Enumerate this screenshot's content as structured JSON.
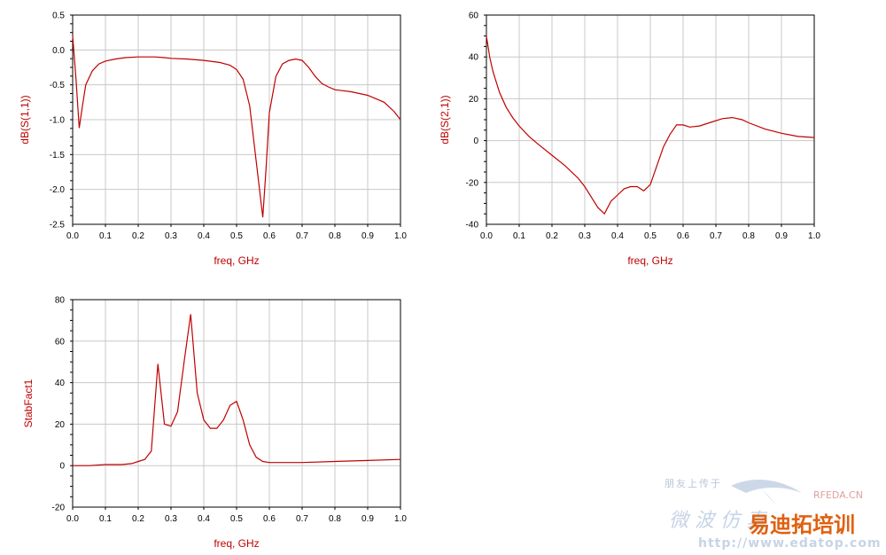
{
  "chart_data": [
    {
      "type": "line",
      "id": "s11",
      "xlabel": "freq, GHz",
      "ylabel": "dB(S(1,1))",
      "xlim": [
        0,
        1.0
      ],
      "ylim": [
        -2.5,
        0.5
      ],
      "xticks": [
        "0.0",
        "0.1",
        "0.2",
        "0.3",
        "0.4",
        "0.5",
        "0.6",
        "0.7",
        "0.8",
        "0.9",
        "1.0"
      ],
      "yticks": [
        "0.5",
        "0.0",
        "-0.5",
        "-1.0",
        "-1.5",
        "-2.0",
        "-2.5"
      ],
      "grid": true,
      "series": [
        {
          "color": "#c00000",
          "x": [
            0.0,
            0.01,
            0.02,
            0.03,
            0.04,
            0.06,
            0.08,
            0.1,
            0.13,
            0.16,
            0.2,
            0.25,
            0.28,
            0.3,
            0.35,
            0.4,
            0.45,
            0.48,
            0.5,
            0.52,
            0.54,
            0.56,
            0.58,
            0.59,
            0.6,
            0.62,
            0.64,
            0.66,
            0.68,
            0.7,
            0.72,
            0.74,
            0.76,
            0.78,
            0.8,
            0.85,
            0.9,
            0.95,
            0.98,
            1.0
          ],
          "y": [
            0.2,
            -0.4,
            -1.12,
            -0.8,
            -0.5,
            -0.3,
            -0.2,
            -0.16,
            -0.13,
            -0.11,
            -0.1,
            -0.1,
            -0.11,
            -0.12,
            -0.13,
            -0.15,
            -0.18,
            -0.22,
            -0.28,
            -0.42,
            -0.8,
            -1.6,
            -2.4,
            -1.7,
            -0.9,
            -0.38,
            -0.2,
            -0.15,
            -0.13,
            -0.15,
            -0.25,
            -0.38,
            -0.48,
            -0.53,
            -0.57,
            -0.6,
            -0.65,
            -0.75,
            -0.88,
            -1.0
          ]
        }
      ]
    },
    {
      "type": "line",
      "id": "s21",
      "xlabel": "freq, GHz",
      "ylabel": "dB(S(2,1))",
      "xlim": [
        0,
        1.0
      ],
      "ylim": [
        -40,
        60
      ],
      "xticks": [
        "0.0",
        "0.1",
        "0.2",
        "0.3",
        "0.4",
        "0.5",
        "0.6",
        "0.7",
        "0.8",
        "0.9",
        "1.0"
      ],
      "yticks": [
        "60",
        "40",
        "20",
        "0",
        "-20",
        "-40"
      ],
      "grid": true,
      "series": [
        {
          "color": "#c00000",
          "x": [
            0.0,
            0.01,
            0.02,
            0.04,
            0.06,
            0.08,
            0.1,
            0.13,
            0.16,
            0.2,
            0.24,
            0.28,
            0.3,
            0.32,
            0.34,
            0.36,
            0.38,
            0.4,
            0.42,
            0.44,
            0.46,
            0.48,
            0.5,
            0.52,
            0.54,
            0.56,
            0.58,
            0.6,
            0.62,
            0.65,
            0.68,
            0.72,
            0.75,
            0.78,
            0.8,
            0.85,
            0.9,
            0.95,
            1.0
          ],
          "y": [
            50,
            40,
            33,
            23,
            16,
            11,
            7,
            2,
            -2,
            -7,
            -12,
            -18,
            -22,
            -27,
            -32,
            -35,
            -29,
            -26,
            -23,
            -22,
            -22,
            -24,
            -21,
            -12,
            -3,
            3,
            7.5,
            7.5,
            6.5,
            7,
            8.5,
            10.5,
            11,
            10,
            8.5,
            5.5,
            3.5,
            2,
            1.5
          ]
        }
      ]
    },
    {
      "type": "line",
      "id": "stab",
      "xlabel": "freq, GHz",
      "ylabel": "StabFact1",
      "xlim": [
        0,
        1.0
      ],
      "ylim": [
        -20,
        80
      ],
      "xticks": [
        "0.0",
        "0.1",
        "0.2",
        "0.3",
        "0.4",
        "0.5",
        "0.6",
        "0.7",
        "0.8",
        "0.9",
        "1.0"
      ],
      "yticks": [
        "80",
        "60",
        "40",
        "20",
        "0",
        "-20"
      ],
      "grid": true,
      "series": [
        {
          "color": "#c00000",
          "x": [
            0.0,
            0.05,
            0.1,
            0.15,
            0.18,
            0.2,
            0.22,
            0.24,
            0.26,
            0.28,
            0.3,
            0.32,
            0.34,
            0.36,
            0.38,
            0.4,
            0.42,
            0.44,
            0.46,
            0.48,
            0.5,
            0.52,
            0.54,
            0.56,
            0.58,
            0.6,
            0.65,
            0.7,
            0.8,
            0.9,
            1.0
          ],
          "y": [
            0,
            0,
            0.5,
            0.5,
            1,
            2,
            3,
            7,
            49,
            20,
            19,
            26,
            50,
            73,
            35,
            22,
            18,
            18,
            22,
            29,
            31,
            22,
            10,
            4,
            2,
            1.5,
            1.5,
            1.5,
            2,
            2.5,
            3
          ]
        }
      ]
    }
  ],
  "watermark": {
    "line1": "朋友上传于",
    "brand_en": "RFEDA.CN",
    "brand_cn_faded": "微 波 仿 真",
    "brand_cn_main": "易迪拓培训",
    "url": "http://www.edatop.com",
    "colors": {
      "accent": "#c00000",
      "main": "#e06010",
      "faded": "#b8c8dc"
    }
  }
}
